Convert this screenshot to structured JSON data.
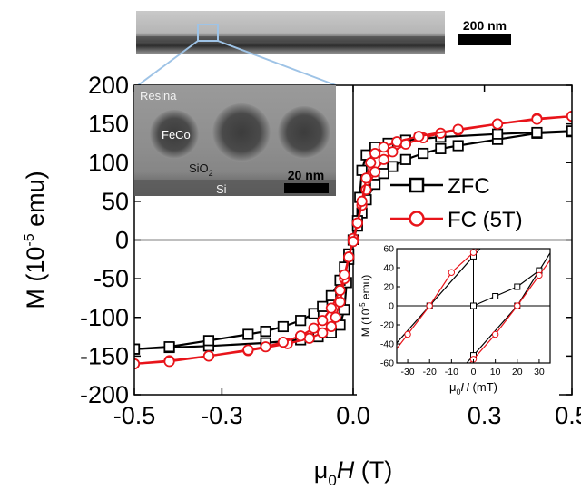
{
  "chart_data": [
    {
      "type": "line",
      "xlabel_prefix": "μ",
      "xlabel_sub": "0",
      "xlabel_var": "H",
      "xlabel_unit": " (T)",
      "ylabel_pre": "M (10",
      "ylabel_sup": "-5",
      "ylabel_post": " emu)",
      "xlim": [
        -0.5,
        0.5
      ],
      "ylim": [
        -200,
        200
      ],
      "xticks": [
        "-0.5",
        "-0.3",
        "0.0",
        "0.3",
        "0.5"
      ],
      "yticks": [
        "200",
        "150",
        "100",
        "50",
        "0",
        "-50",
        "-100",
        "-150",
        "-200"
      ],
      "legend_position": "center-right",
      "series": [
        {
          "name": "ZFC",
          "color": "#000000",
          "marker": "square",
          "branch_descending": [
            [
              0.5,
              140
            ],
            [
              0.42,
              138
            ],
            [
              0.33,
              130
            ],
            [
              0.24,
              122
            ],
            [
              0.2,
              118
            ],
            [
              0.16,
              112
            ],
            [
              0.12,
              104
            ],
            [
              0.09,
              95
            ],
            [
              0.07,
              86
            ],
            [
              0.05,
              72
            ],
            [
              0.03,
              52
            ],
            [
              0.02,
              35
            ],
            [
              0.01,
              18
            ],
            [
              0.0,
              0
            ],
            [
              -0.01,
              -25
            ],
            [
              -0.015,
              -55
            ],
            [
              -0.02,
              -90
            ],
            [
              -0.03,
              -110
            ],
            [
              -0.05,
              -120
            ],
            [
              -0.08,
              -125
            ],
            [
              -0.12,
              -129
            ],
            [
              -0.2,
              -133
            ],
            [
              -0.33,
              -137
            ],
            [
              -0.42,
              -139
            ],
            [
              -0.5,
              -141
            ]
          ],
          "branch_ascending": [
            [
              -0.5,
              -141
            ],
            [
              -0.42,
              -138
            ],
            [
              -0.33,
              -130
            ],
            [
              -0.24,
              -122
            ],
            [
              -0.2,
              -118
            ],
            [
              -0.16,
              -112
            ],
            [
              -0.12,
              -104
            ],
            [
              -0.09,
              -95
            ],
            [
              -0.07,
              -86
            ],
            [
              -0.05,
              -72
            ],
            [
              -0.03,
              -52
            ],
            [
              -0.02,
              -35
            ],
            [
              -0.01,
              -18
            ],
            [
              0.0,
              0
            ],
            [
              0.01,
              25
            ],
            [
              0.015,
              55
            ],
            [
              0.02,
              90
            ],
            [
              0.03,
              110
            ],
            [
              0.05,
              120
            ],
            [
              0.08,
              125
            ],
            [
              0.12,
              129
            ],
            [
              0.2,
              133
            ],
            [
              0.33,
              137
            ],
            [
              0.42,
              139
            ],
            [
              0.5,
              141
            ]
          ]
        },
        {
          "name": "FC (5T)",
          "color": "#e8141a",
          "marker": "circle",
          "branch_descending": [
            [
              0.5,
              160
            ],
            [
              0.42,
              157
            ],
            [
              0.33,
              150
            ],
            [
              0.24,
              142
            ],
            [
              0.2,
              138
            ],
            [
              0.16,
              132
            ],
            [
              0.12,
              124
            ],
            [
              0.09,
              114
            ],
            [
              0.07,
              104
            ],
            [
              0.05,
              88
            ],
            [
              0.03,
              65
            ],
            [
              0.02,
              45
            ],
            [
              0.01,
              22
            ],
            [
              0.0,
              2
            ],
            [
              -0.01,
              -22
            ],
            [
              -0.02,
              -50
            ],
            [
              -0.03,
              -80
            ],
            [
              -0.04,
              -100
            ],
            [
              -0.05,
              -112
            ],
            [
              -0.07,
              -120
            ],
            [
              -0.1,
              -127
            ],
            [
              -0.15,
              -134
            ],
            [
              -0.24,
              -143
            ],
            [
              -0.33,
              -150
            ],
            [
              -0.42,
              -156
            ],
            [
              -0.5,
              -160
            ]
          ],
          "branch_ascending": [
            [
              -0.5,
              -160
            ],
            [
              -0.42,
              -157
            ],
            [
              -0.33,
              -150
            ],
            [
              -0.24,
              -142
            ],
            [
              -0.2,
              -138
            ],
            [
              -0.16,
              -132
            ],
            [
              -0.12,
              -124
            ],
            [
              -0.09,
              -114
            ],
            [
              -0.07,
              -104
            ],
            [
              -0.05,
              -88
            ],
            [
              -0.03,
              -65
            ],
            [
              -0.02,
              -45
            ],
            [
              -0.01,
              -22
            ],
            [
              0.0,
              -2
            ],
            [
              0.01,
              22
            ],
            [
              0.02,
              50
            ],
            [
              0.03,
              80
            ],
            [
              0.04,
              100
            ],
            [
              0.05,
              112
            ],
            [
              0.07,
              120
            ],
            [
              0.1,
              127
            ],
            [
              0.15,
              134
            ],
            [
              0.24,
              143
            ],
            [
              0.33,
              150
            ],
            [
              0.42,
              156
            ],
            [
              0.5,
              160
            ]
          ]
        }
      ]
    },
    {
      "type": "line",
      "xlabel_prefix": "μ",
      "xlabel_sub": "0",
      "xlabel_var": "H",
      "xlabel_unit": " (mT)",
      "ylabel_pre": "M (10",
      "ylabel_sup": "-5",
      "ylabel_post": " emu)",
      "xlim": [
        -35,
        35
      ],
      "ylim": [
        -60,
        60
      ],
      "xticks": [
        "-30",
        "-20",
        "-10",
        "0",
        "10",
        "20",
        "30"
      ],
      "yticks": [
        "60",
        "40",
        "20",
        "0",
        "-20",
        "-40",
        "-60"
      ],
      "series": [
        {
          "name": "ZFC",
          "color": "#000000",
          "marker": "square",
          "branch_1": [
            [
              -20,
              0
            ],
            [
              0,
              52
            ]
          ],
          "branch_2": [
            [
              0,
              -52
            ],
            [
              20,
              0
            ],
            [
              30,
              37
            ]
          ],
          "virgin": [
            [
              0,
              0
            ],
            [
              10,
              10
            ],
            [
              20,
              20
            ],
            [
              30,
              37
            ]
          ]
        },
        {
          "name": "FC (5T)",
          "color": "#e8141a",
          "marker": "circle",
          "branch_1": [
            [
              -30,
              -30
            ],
            [
              -20,
              0
            ],
            [
              -10,
              35
            ],
            [
              0,
              56
            ]
          ],
          "branch_2": [
            [
              0,
              -56
            ],
            [
              10,
              -30
            ],
            [
              20,
              0
            ],
            [
              30,
              32
            ]
          ]
        }
      ]
    }
  ],
  "tem_strip": {
    "scale_label": "200 nm"
  },
  "tem_inset": {
    "label_resina": "Resina",
    "label_feco": "FeCo",
    "label_sio2_main": "SiO",
    "label_sio2_sub": "2",
    "label_si": "Si",
    "scale_label": "20 nm"
  },
  "colors": {
    "zfc": "#000000",
    "fc": "#e8141a",
    "zoom_box": "#9ec3e6"
  }
}
